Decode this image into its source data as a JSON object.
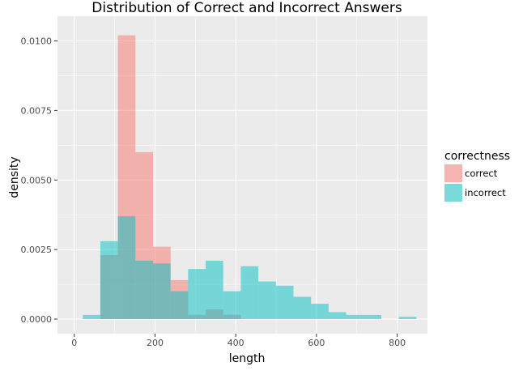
{
  "chart_data": {
    "type": "histogram",
    "title": "Distribution of Correct and Incorrect Answers",
    "xlabel": "length",
    "ylabel": "density",
    "xlim": [
      0,
      850
    ],
    "ylim": [
      0,
      0.0104
    ],
    "x_ticks": [
      0,
      200,
      400,
      600,
      800
    ],
    "x_tick_labels": [
      "0",
      "200",
      "400",
      "600",
      "800"
    ],
    "y_ticks": [
      0,
      0.0025,
      0.005,
      0.0075,
      0.01
    ],
    "y_tick_labels": [
      "0.0000",
      "0.0025",
      "0.0050",
      "0.0075",
      "0.0100"
    ],
    "grid": true,
    "legend_position": "right",
    "legend": {
      "title": "correctness"
    },
    "bin_width": 43.5,
    "series": [
      {
        "name": "correct",
        "color": "#F8766D",
        "bins": [
          {
            "x_start": 64.5,
            "x_end": 108.0,
            "density": 0.0023
          },
          {
            "x_start": 108.0,
            "x_end": 151.5,
            "density": 0.0102
          },
          {
            "x_start": 151.5,
            "x_end": 195.0,
            "density": 0.006
          },
          {
            "x_start": 195.0,
            "x_end": 238.5,
            "density": 0.0026
          },
          {
            "x_start": 238.5,
            "x_end": 282.0,
            "density": 0.0014
          },
          {
            "x_start": 282.0,
            "x_end": 325.5,
            "density": 0.00015
          },
          {
            "x_start": 325.5,
            "x_end": 369.0,
            "density": 0.00035
          },
          {
            "x_start": 369.0,
            "x_end": 412.5,
            "density": 0.00015
          }
        ]
      },
      {
        "name": "incorrect",
        "color": "#00BFC4",
        "bins": [
          {
            "x_start": 21.0,
            "x_end": 64.5,
            "density": 0.00015
          },
          {
            "x_start": 64.5,
            "x_end": 108.0,
            "density": 0.0028
          },
          {
            "x_start": 108.0,
            "x_end": 151.5,
            "density": 0.0037
          },
          {
            "x_start": 151.5,
            "x_end": 195.0,
            "density": 0.0021
          },
          {
            "x_start": 195.0,
            "x_end": 238.5,
            "density": 0.002
          },
          {
            "x_start": 238.5,
            "x_end": 282.0,
            "density": 0.001
          },
          {
            "x_start": 282.0,
            "x_end": 325.5,
            "density": 0.0018
          },
          {
            "x_start": 325.5,
            "x_end": 369.0,
            "density": 0.0021
          },
          {
            "x_start": 369.0,
            "x_end": 412.5,
            "density": 0.001
          },
          {
            "x_start": 412.5,
            "x_end": 456.0,
            "density": 0.0019
          },
          {
            "x_start": 456.0,
            "x_end": 499.5,
            "density": 0.00135
          },
          {
            "x_start": 499.5,
            "x_end": 543.0,
            "density": 0.0012
          },
          {
            "x_start": 543.0,
            "x_end": 586.5,
            "density": 0.0008
          },
          {
            "x_start": 586.5,
            "x_end": 630.0,
            "density": 0.00055
          },
          {
            "x_start": 630.0,
            "x_end": 673.5,
            "density": 0.00025
          },
          {
            "x_start": 673.5,
            "x_end": 717.0,
            "density": 0.00015
          },
          {
            "x_start": 717.0,
            "x_end": 760.5,
            "density": 0.00015
          },
          {
            "x_start": 760.5,
            "x_end": 804.0,
            "density": 0.0
          },
          {
            "x_start": 804.0,
            "x_end": 847.5,
            "density": 8e-05
          }
        ]
      }
    ]
  }
}
